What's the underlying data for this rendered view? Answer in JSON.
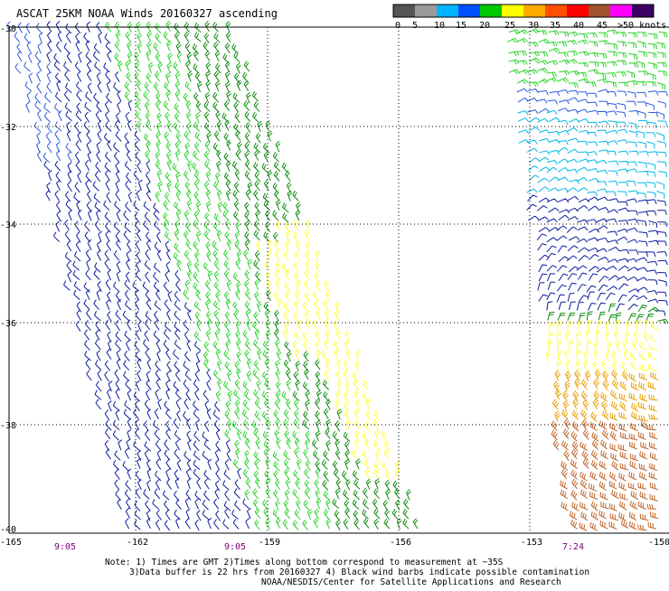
{
  "title": "ASCAT 25KM NOAA Winds 20160327 ascending",
  "legend": {
    "labels": [
      "0",
      "5",
      "10",
      "15",
      "20",
      "25",
      "30",
      "35",
      "40",
      "45",
      ">50 knots"
    ],
    "colors": [
      "#555555",
      "#9a9a9a",
      "#00b4ff",
      "#0050ff",
      "#00c800",
      "#ffff00",
      "#ffaa00",
      "#ff5000",
      "#ff0000",
      "#a0522d",
      "#ff00ff",
      "#3c0064"
    ]
  },
  "latitude_labels": [
    "-30",
    "-32",
    "-34",
    "-36",
    "-38",
    "-40"
  ],
  "longitude_labels": [
    "-165",
    "-162",
    "-159",
    "-156",
    "-153",
    "-150"
  ],
  "time_labels": [
    "9:05",
    "9:05",
    "7:24"
  ],
  "notes": [
    "Note: 1) Times are GMT 2)Times along bottom correspond to measurement at ~35S",
    "3)Data buffer is 22 hrs from 20160327 4) Black wind barbs indicate possible contamination",
    "NOAA/NESDIS/Center for Satellite Applications and Research"
  ],
  "barb_colors": {
    "navy": "#0a1aa0",
    "blue": "#2a5ae0",
    "cyan": "#00b8e8",
    "green": "#28d228",
    "dkgreen": "#0a8a0a",
    "yellow": "#ffff3c",
    "orange": "#e8a000",
    "brown": "#c06428"
  },
  "gridline_color": "#000000"
}
